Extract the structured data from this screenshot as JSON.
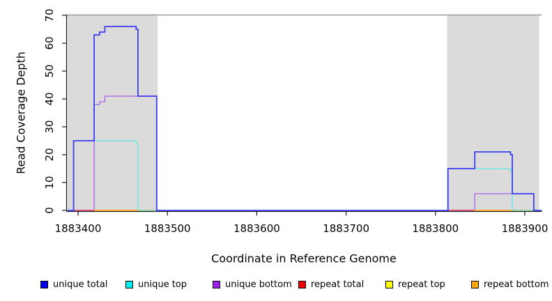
{
  "chart_data": {
    "type": "line",
    "subtype": "step-coverage",
    "title": "",
    "xlabel": "Coordinate in Reference Genome",
    "ylabel": "Read Coverage Depth",
    "xlim": [
      1883388,
      1883919
    ],
    "ylim": [
      0,
      70
    ],
    "x_ticks": [
      1883400,
      1883500,
      1883600,
      1883700,
      1883800,
      1883900
    ],
    "y_ticks": [
      0,
      10,
      20,
      30,
      40,
      50,
      60,
      70
    ],
    "grid": "off",
    "legend_position": "bottom",
    "top_rule_y": 70,
    "top_rule_color": "#9a9a9a",
    "shaded_regions": [
      {
        "name": "repeat-region-left",
        "from": 1883388,
        "to": 1883489,
        "color": "#dbdbdb"
      },
      {
        "name": "repeat-region-right",
        "from": 1883813,
        "to": 1883916,
        "color": "#dbdbdb"
      }
    ],
    "series": [
      {
        "name": "unique bottom",
        "color": "#a85ce8",
        "width": 1.3,
        "points": [
          [
            1883388,
            0
          ],
          [
            1883418,
            38
          ],
          [
            1883424,
            39
          ],
          [
            1883430,
            41
          ],
          [
            1883488,
            0
          ],
          [
            1883844,
            6
          ],
          [
            1883910,
            0
          ],
          [
            1883919,
            0
          ]
        ]
      },
      {
        "name": "unique top",
        "color": "#5fe8e8",
        "width": 1.3,
        "points": [
          [
            1883388,
            0
          ],
          [
            1883395,
            25
          ],
          [
            1883465,
            24
          ],
          [
            1883467,
            0
          ],
          [
            1883814,
            15
          ],
          [
            1883884,
            14
          ],
          [
            1883886,
            0
          ],
          [
            1883919,
            0
          ]
        ]
      },
      {
        "name": "unique total",
        "color": "#3d3df2",
        "width": 1.8,
        "points": [
          [
            1883388,
            0
          ],
          [
            1883395,
            25
          ],
          [
            1883418,
            63
          ],
          [
            1883424,
            64
          ],
          [
            1883430,
            66
          ],
          [
            1883465,
            65
          ],
          [
            1883467,
            41
          ],
          [
            1883488,
            0
          ],
          [
            1883814,
            15
          ],
          [
            1883844,
            21
          ],
          [
            1883884,
            20
          ],
          [
            1883886,
            6
          ],
          [
            1883910,
            0
          ],
          [
            1883919,
            0
          ]
        ]
      },
      {
        "name": "repeat total",
        "color": "#ff0000",
        "width": 1.3,
        "draw": false,
        "points": [
          [
            1883388,
            0
          ],
          [
            1883919,
            0
          ]
        ]
      },
      {
        "name": "repeat top",
        "color": "#ffff00",
        "width": 1.3,
        "draw": false,
        "points": [
          [
            1883388,
            0
          ],
          [
            1883919,
            0
          ]
        ]
      },
      {
        "name": "repeat bottom",
        "color": "#ffa500",
        "width": 1.3,
        "draw": false,
        "points": [
          [
            1883388,
            0
          ],
          [
            1883919,
            0
          ]
        ]
      }
    ],
    "zero_line_segments": [
      {
        "color": "#d6486e",
        "from": 1883395,
        "to": 1883418
      },
      {
        "color": "#ffa41e",
        "from": 1883418,
        "to": 1883467
      },
      {
        "color": "#8fce9b",
        "from": 1883467,
        "to": 1883488
      },
      {
        "color": "#d6486e",
        "from": 1883814,
        "to": 1883844
      },
      {
        "color": "#ffa41e",
        "from": 1883844,
        "to": 1883886
      },
      {
        "color": "#8fce9b",
        "from": 1883886,
        "to": 1883910
      }
    ],
    "legend": [
      {
        "label": "unique total",
        "color": "#0000ee"
      },
      {
        "label": "unique top",
        "color": "#00eeee"
      },
      {
        "label": "unique bottom",
        "color": "#a020f0"
      },
      {
        "label": "repeat total",
        "color": "#ee0000"
      },
      {
        "label": "repeat top",
        "color": "#ffff00"
      },
      {
        "label": "repeat bottom",
        "color": "#ffa500"
      }
    ]
  }
}
